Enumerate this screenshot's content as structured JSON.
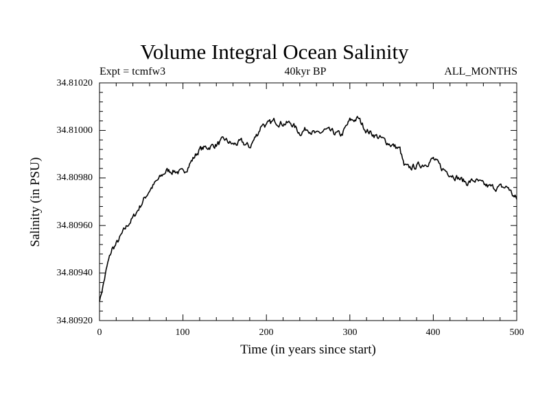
{
  "chart_data": {
    "type": "line",
    "title": "Volume Integral Ocean Salinity",
    "subtitle_left": "Expt = tcmfw3",
    "subtitle_center": "40kyr BP",
    "subtitle_right": "ALL_MONTHS",
    "xlabel": "Time (in years since start)",
    "ylabel": "Salinity (in PSU)",
    "xlim": [
      0,
      500
    ],
    "ylim": [
      34.8092,
      34.8102
    ],
    "xticks": [
      "0",
      "100",
      "200",
      "300",
      "400",
      "500"
    ],
    "yticks": [
      "34.80920",
      "34.80940",
      "34.80960",
      "34.80980",
      "34.81000",
      "34.81020"
    ],
    "series": [
      {
        "name": "Salinity",
        "x": [
          0,
          5,
          10,
          15,
          20,
          25,
          30,
          35,
          40,
          45,
          50,
          55,
          60,
          65,
          70,
          75,
          80,
          90,
          100,
          110,
          120,
          130,
          140,
          150,
          160,
          170,
          180,
          185,
          190,
          195,
          200,
          210,
          220,
          230,
          240,
          250,
          260,
          270,
          280,
          290,
          300,
          310,
          320,
          330,
          340,
          350,
          360,
          365,
          370,
          380,
          390,
          400,
          410,
          420,
          430,
          440,
          450,
          460,
          470,
          480,
          490,
          495,
          500
        ],
        "y": [
          34.80928,
          34.80936,
          34.80944,
          34.8095,
          34.80952,
          34.80955,
          34.80958,
          34.80961,
          34.80963,
          34.80966,
          34.80969,
          34.80972,
          34.80975,
          34.80977,
          34.80979,
          34.80981,
          34.80983,
          34.80983,
          34.80982,
          34.80987,
          34.80992,
          34.80993,
          34.80994,
          34.80996,
          34.80994,
          34.80995,
          34.80993,
          34.80996,
          34.80999,
          34.81003,
          34.81002,
          34.81004,
          34.81003,
          34.81003,
          34.80999,
          34.81001,
          34.80998,
          34.81,
          34.80999,
          34.80998,
          34.81004,
          34.81005,
          34.81,
          34.80998,
          34.80996,
          34.80994,
          34.80992,
          34.80985,
          34.80984,
          34.80985,
          34.80986,
          34.80988,
          34.80984,
          34.80982,
          34.8098,
          34.80978,
          34.80979,
          34.80977,
          34.80976,
          34.80976,
          34.80976,
          34.80973,
          34.80971
        ]
      }
    ]
  }
}
